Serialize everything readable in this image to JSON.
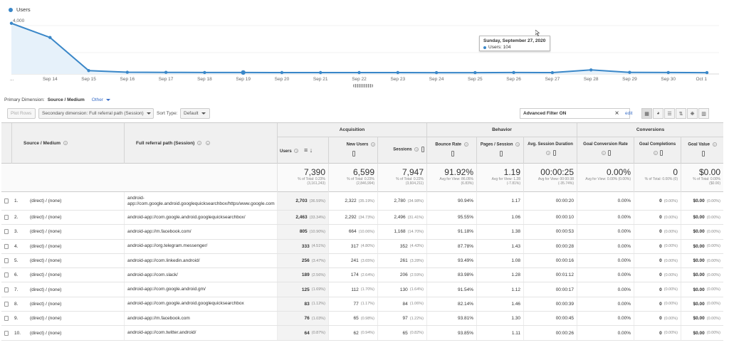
{
  "chart": {
    "legend_label": "Users",
    "y_ticks": [
      "4,000",
      "2,000"
    ],
    "x_labels": [
      "...",
      "Sep 14",
      "Sep 15",
      "Sep 16",
      "Sep 17",
      "Sep 18",
      "Sep 19",
      "Sep 20",
      "Sep 21",
      "Sep 22",
      "Sep 23",
      "Sep 24",
      "Sep 25",
      "Sep 26",
      "Sep 27",
      "Sep 28",
      "Sep 29",
      "Sep 30",
      "Oct 1"
    ],
    "tooltip_title": "Sunday, September 27, 2020",
    "tooltip_value": "Users: 104",
    "line_color": "#3a87c8"
  },
  "chart_data": {
    "type": "area",
    "series": [
      {
        "name": "Users",
        "values": [
          3750,
          2700,
          250,
          130,
          120,
          110,
          110,
          105,
          105,
          105,
          105,
          100,
          100,
          110,
          104,
          300,
          120,
          110,
          100
        ]
      }
    ],
    "x": [
      "...",
      "Sep 14",
      "Sep 15",
      "Sep 16",
      "Sep 17",
      "Sep 18",
      "Sep 19",
      "Sep 20",
      "Sep 21",
      "Sep 22",
      "Sep 23",
      "Sep 24",
      "Sep 25",
      "Sep 26",
      "Sep 27",
      "Sep 28",
      "Sep 29",
      "Sep 30",
      "Oct 1"
    ],
    "ylim": [
      0,
      4000
    ],
    "grid": true,
    "legend": "top-left"
  },
  "primary_dimension": {
    "label": "Primary Dimension:",
    "value": "Source / Medium",
    "other": "Other"
  },
  "toolbar": {
    "plot_rows": "Plot Rows",
    "secondary_dimension": "Secondary dimension: Full referral path (Session)",
    "sort_type_label": "Sort Type:",
    "sort_type_value": "Default",
    "advanced_filter": "Advanced Filter ON",
    "edit": "edit"
  },
  "groups": {
    "acquisition": "Acquisition",
    "behavior": "Behavior",
    "conversions": "Conversions"
  },
  "headers": {
    "source_medium": "Source / Medium",
    "referral_path": "Full referral path (Session)",
    "users": "Users",
    "new_users": "New Users",
    "sessions": "Sessions",
    "bounce_rate": "Bounce Rate",
    "pages_session": "Pages / Session",
    "avg_duration": "Avg. Session Duration",
    "goal_conv_rate": "Goal Conversion Rate",
    "goal_completions": "Goal Completions",
    "goal_value": "Goal Value"
  },
  "totals": {
    "users": "7,390",
    "users_sub": "% of Total: 0.23% (3,161,243)",
    "new_users": "6,599",
    "new_users_sub": "% of Total: 0.23% (2,846,994)",
    "sessions": "7,947",
    "sessions_sub": "% of Total: 0.22% (3,604,211)",
    "bounce_rate": "91.92%",
    "bounce_rate_sub": "Avg for View: 86.05% (6.83%)",
    "pages_session": "1.19",
    "pages_session_sub": "Avg for View: 1.28 (-7.81%)",
    "avg_duration": "00:00:25",
    "avg_duration_sub": "Avg for View: 00:00:38 (-35.74%)",
    "goal_conv_rate": "0.00%",
    "goal_conv_rate_sub": "Avg for View: 0.00% (0.00%)",
    "goal_completions": "0",
    "goal_completions_sub": "% of Total: 0.00% (0)",
    "goal_value": "$0.00",
    "goal_value_sub": "% of Total: 0.00% ($0.00)"
  },
  "rows": [
    {
      "n": "1.",
      "source": "(direct) / (none)",
      "path": "android-app://com.google.android.googlequicksearchbox/https/www.google.com",
      "users": "2,703",
      "users_pct": "(36.59%)",
      "new_users": "2,322",
      "new_users_pct": "(35.19%)",
      "sessions": "2,780",
      "sessions_pct": "(34.98%)",
      "bounce": "90.94%",
      "pages": "1.17",
      "duration": "00:00:20",
      "conv": "0.00%",
      "comp": "0",
      "comp_pct": "(0.00%)",
      "val": "$0.00",
      "val_pct": "(0.00%)"
    },
    {
      "n": "2.",
      "source": "(direct) / (none)",
      "path": "android-app://com.google.android.googlequicksearchbox/",
      "users": "2,463",
      "users_pct": "(33.34%)",
      "new_users": "2,292",
      "new_users_pct": "(34.73%)",
      "sessions": "2,496",
      "sessions_pct": "(31.41%)",
      "bounce": "95.55%",
      "pages": "1.06",
      "duration": "00:00:10",
      "conv": "0.00%",
      "comp": "0",
      "comp_pct": "(0.00%)",
      "val": "$0.00",
      "val_pct": "(0.00%)"
    },
    {
      "n": "3.",
      "source": "(direct) / (none)",
      "path": "android-app://m.facebook.com/",
      "users": "805",
      "users_pct": "(10.90%)",
      "new_users": "664",
      "new_users_pct": "(10.06%)",
      "sessions": "1,168",
      "sessions_pct": "(14.70%)",
      "bounce": "91.18%",
      "pages": "1.38",
      "duration": "00:00:53",
      "conv": "0.00%",
      "comp": "0",
      "comp_pct": "(0.00%)",
      "val": "$0.00",
      "val_pct": "(0.00%)"
    },
    {
      "n": "4.",
      "source": "(direct) / (none)",
      "path": "android-app://org.telegram.messenger/",
      "users": "333",
      "users_pct": "(4.51%)",
      "new_users": "317",
      "new_users_pct": "(4.80%)",
      "sessions": "352",
      "sessions_pct": "(4.43%)",
      "bounce": "87.78%",
      "pages": "1.43",
      "duration": "00:00:28",
      "conv": "0.00%",
      "comp": "0",
      "comp_pct": "(0.00%)",
      "val": "$0.00",
      "val_pct": "(0.00%)"
    },
    {
      "n": "5.",
      "source": "(direct) / (none)",
      "path": "android-app://com.linkedin.android/",
      "users": "256",
      "users_pct": "(3.47%)",
      "new_users": "241",
      "new_users_pct": "(3.65%)",
      "sessions": "261",
      "sessions_pct": "(3.28%)",
      "bounce": "93.49%",
      "pages": "1.08",
      "duration": "00:00:16",
      "conv": "0.00%",
      "comp": "0",
      "comp_pct": "(0.00%)",
      "val": "$0.00",
      "val_pct": "(0.00%)"
    },
    {
      "n": "6.",
      "source": "(direct) / (none)",
      "path": "android-app://com.slack/",
      "users": "189",
      "users_pct": "(2.56%)",
      "new_users": "174",
      "new_users_pct": "(2.64%)",
      "sessions": "206",
      "sessions_pct": "(2.59%)",
      "bounce": "83.98%",
      "pages": "1.28",
      "duration": "00:01:12",
      "conv": "0.00%",
      "comp": "0",
      "comp_pct": "(0.00%)",
      "val": "$0.00",
      "val_pct": "(0.00%)"
    },
    {
      "n": "7.",
      "source": "(direct) / (none)",
      "path": "android-app://com.google.android.gm/",
      "users": "125",
      "users_pct": "(1.69%)",
      "new_users": "112",
      "new_users_pct": "(1.70%)",
      "sessions": "130",
      "sessions_pct": "(1.64%)",
      "bounce": "91.54%",
      "pages": "1.12",
      "duration": "00:00:17",
      "conv": "0.00%",
      "comp": "0",
      "comp_pct": "(0.00%)",
      "val": "$0.00",
      "val_pct": "(0.00%)"
    },
    {
      "n": "8.",
      "source": "(direct) / (none)",
      "path": "android-app://com.google.android.googlequicksearchbox",
      "users": "83",
      "users_pct": "(1.12%)",
      "new_users": "77",
      "new_users_pct": "(1.17%)",
      "sessions": "84",
      "sessions_pct": "(1.06%)",
      "bounce": "82.14%",
      "pages": "1.46",
      "duration": "00:00:39",
      "conv": "0.00%",
      "comp": "0",
      "comp_pct": "(0.00%)",
      "val": "$0.00",
      "val_pct": "(0.00%)"
    },
    {
      "n": "9.",
      "source": "(direct) / (none)",
      "path": "android-app://m.facebook.com",
      "users": "76",
      "users_pct": "(1.03%)",
      "new_users": "65",
      "new_users_pct": "(0.98%)",
      "sessions": "97",
      "sessions_pct": "(1.22%)",
      "bounce": "93.81%",
      "pages": "1.30",
      "duration": "00:00:45",
      "conv": "0.00%",
      "comp": "0",
      "comp_pct": "(0.00%)",
      "val": "$0.00",
      "val_pct": "(0.00%)"
    },
    {
      "n": "10.",
      "source": "(direct) / (none)",
      "path": "android-app://com.twitter.android/",
      "users": "64",
      "users_pct": "(0.87%)",
      "new_users": "62",
      "new_users_pct": "(0.94%)",
      "sessions": "65",
      "sessions_pct": "(0.82%)",
      "bounce": "93.85%",
      "pages": "1.11",
      "duration": "00:00:26",
      "conv": "0.00%",
      "comp": "0",
      "comp_pct": "(0.00%)",
      "val": "$0.00",
      "val_pct": "(0.00%)"
    }
  ]
}
